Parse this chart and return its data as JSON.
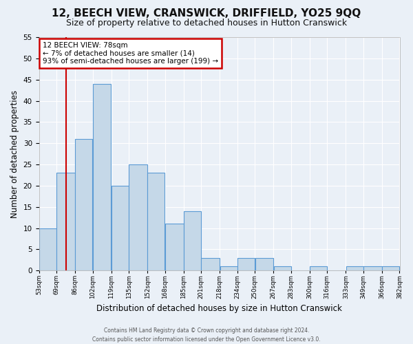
{
  "title": "12, BEECH VIEW, CRANSWICK, DRIFFIELD, YO25 9QQ",
  "subtitle": "Size of property relative to detached houses in Hutton Cranswick",
  "xlabel": "Distribution of detached houses by size in Hutton Cranswick",
  "ylabel": "Number of detached properties",
  "footer_line1": "Contains HM Land Registry data © Crown copyright and database right 2024.",
  "footer_line2": "Contains public sector information licensed under the Open Government Licence v3.0.",
  "bins": [
    53,
    69,
    86,
    102,
    119,
    135,
    152,
    168,
    185,
    201,
    218,
    234,
    250,
    267,
    283,
    300,
    316,
    333,
    349,
    366,
    382
  ],
  "bin_labels": [
    "53sqm",
    "69sqm",
    "86sqm",
    "102sqm",
    "119sqm",
    "135sqm",
    "152sqm",
    "168sqm",
    "185sqm",
    "201sqm",
    "218sqm",
    "234sqm",
    "250sqm",
    "267sqm",
    "283sqm",
    "300sqm",
    "316sqm",
    "333sqm",
    "349sqm",
    "366sqm",
    "382sqm"
  ],
  "counts": [
    10,
    23,
    31,
    44,
    20,
    25,
    23,
    11,
    14,
    3,
    1,
    3,
    3,
    1,
    0,
    1,
    0,
    1,
    1,
    1
  ],
  "bar_color": "#c5d8e8",
  "bar_edge_color": "#5b9bd5",
  "property_value": 78,
  "vline_color": "#cc0000",
  "annotation_line1": "12 BEECH VIEW: 78sqm",
  "annotation_line2": "← 7% of detached houses are smaller (14)",
  "annotation_line3": "93% of semi-detached houses are larger (199) →",
  "annotation_box_edge": "#cc0000",
  "ylim": [
    0,
    55
  ],
  "yticks": [
    0,
    5,
    10,
    15,
    20,
    25,
    30,
    35,
    40,
    45,
    50,
    55
  ],
  "background_color": "#eaf0f7",
  "axes_background": "#eaf0f7",
  "title_fontsize": 11,
  "subtitle_fontsize": 9,
  "grid_color": "#ffffff"
}
